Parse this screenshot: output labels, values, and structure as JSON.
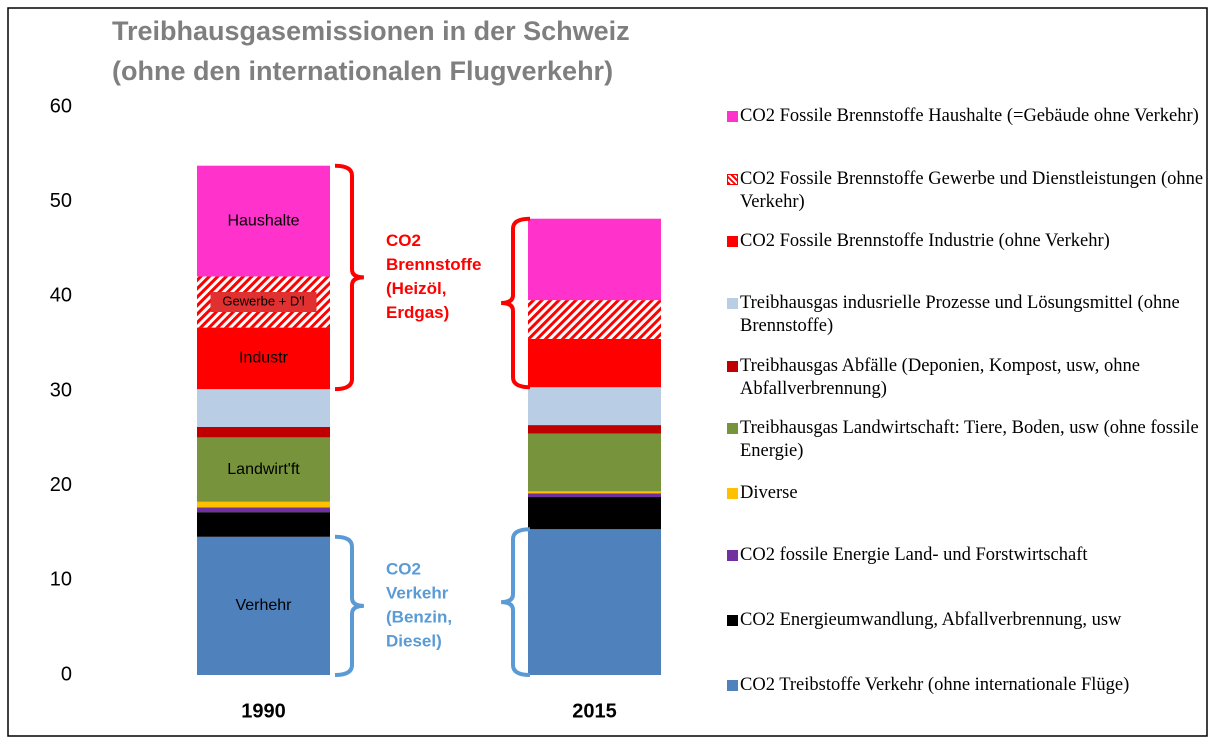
{
  "chart_data": {
    "type": "stacked_bar",
    "title": [
      "Treibhausgasemissionen in der Schweiz",
      "(ohne den internationalen Flugverkehr)"
    ],
    "categories": [
      "1990",
      "2015"
    ],
    "ylim": [
      0,
      60
    ],
    "yticks": [
      0,
      10,
      20,
      30,
      40,
      50,
      60
    ],
    "grid": false,
    "series": [
      {
        "name": "CO2 Treibstoffe Verkehr (ohne internationale Flüge)",
        "color": "#4f81bd",
        "values": [
          14.6,
          15.4
        ]
      },
      {
        "name": "CO2 Energieumwandlung, Abfallverbrennung, usw",
        "color": "#000000",
        "values": [
          2.6,
          3.4
        ]
      },
      {
        "name": "CO2 fossile Energie Land- und Forstwirtschaft",
        "color": "#7030a0",
        "values": [
          0.5,
          0.4
        ]
      },
      {
        "name": "Diverse",
        "color": "#ffc000",
        "values": [
          0.6,
          0.2
        ]
      },
      {
        "name": "Treibhausgas Landwirtschaft: Tiere, Boden, usw (ohne fossile Energie)",
        "color": "#77933c",
        "values": [
          6.8,
          6.1
        ]
      },
      {
        "name": "Treibhausgas Abfälle (Deponien, Kompost, usw, ohne Abfallverbrennung)",
        "color": "#c00000",
        "values": [
          1.1,
          0.9
        ]
      },
      {
        "name": "Treibhausgas indusrielle Prozesse und Lösungsmittel (ohne Brennstoffe)",
        "color": "#b9cde5",
        "values": [
          4.0,
          4.0
        ]
      },
      {
        "name": "CO2 Fossile Brennstoffe Industrie (ohne Verkehr)",
        "color": "#ff0000",
        "values": [
          6.5,
          5.1
        ]
      },
      {
        "name": "CO2  Fossile Brennstoffe Gewerbe und Dienstleistungen (ohne Verkehr)",
        "color": "#ff0000",
        "hatched": true,
        "values": [
          5.4,
          4.1
        ]
      },
      {
        "name": "CO2 Fossile Brennstoffe Haushalte (=Gebäude ohne Verkehr)",
        "color": "#ff33cc",
        "values": [
          11.7,
          8.6
        ]
      }
    ],
    "bar_labels": [
      "Verhehr",
      "Landwirt'ft",
      "Industr",
      "Gewerbe + D'l",
      "Haushalte"
    ],
    "annotations": [
      {
        "lines": [
          "CO2",
          "Brennstoffe",
          "(Heizöl,",
          "Erdgas)"
        ],
        "color": "#ff0000"
      },
      {
        "lines": [
          "CO2",
          "Verkehr",
          "(Benzin,",
          "Diesel)"
        ],
        "color": "#5b9bd5"
      }
    ]
  }
}
